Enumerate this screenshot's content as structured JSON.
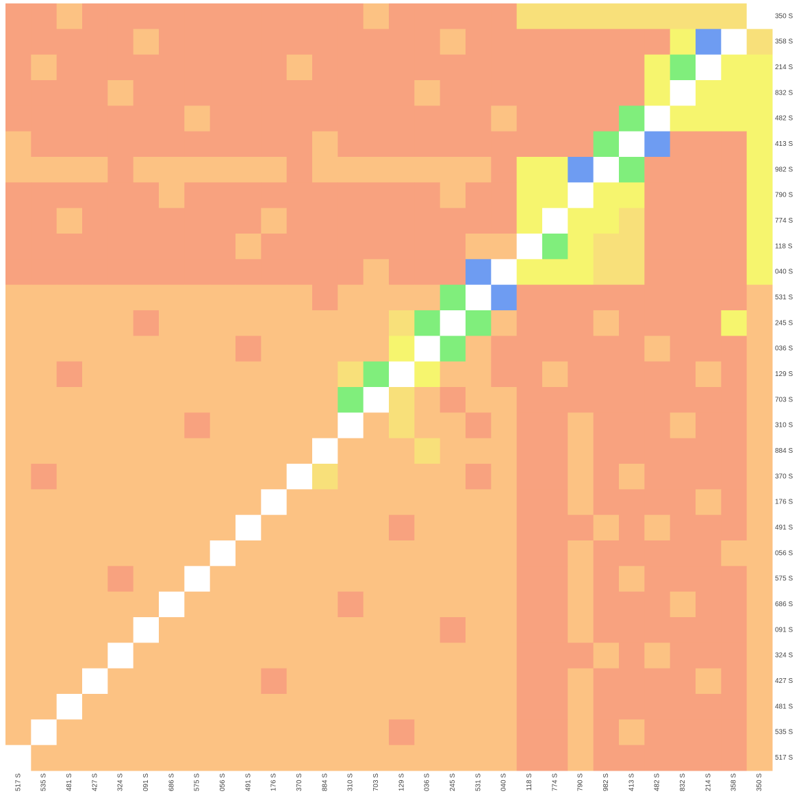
{
  "chart_data": {
    "type": "heatmap",
    "categories": [
      "517 S",
      "535 S",
      "481 S",
      "427 S",
      "324 S",
      "091 S",
      "686 S",
      "575 S",
      "056 S",
      "491 S",
      "176 S",
      "370 S",
      "884 S",
      "310 S",
      "703 S",
      "129 S",
      "036 S",
      "245 S",
      "531 S",
      "040 S",
      "118 S",
      "774 S",
      "790 S",
      "982 S",
      "413 S",
      "482 S",
      "832 S",
      "214 S",
      "358 S",
      "350 S"
    ],
    "colorscale": [
      [
        0.2,
        "#f8a27f"
      ],
      [
        0.3,
        "#fcc283"
      ],
      [
        0.4,
        "#f8e07a"
      ],
      [
        0.5,
        "#f6f56e"
      ],
      [
        0.7,
        "#80ee7c"
      ],
      [
        0.85,
        "#6e9cf2"
      ],
      [
        1,
        "#ffffff"
      ]
    ],
    "z": [
      [
        0.2,
        0.2,
        0.3,
        0.2,
        0.2,
        0.2,
        0.2,
        0.2,
        0.2,
        0.2,
        0.2,
        0.2,
        0.2,
        0.2,
        0.3,
        0.2,
        0.2,
        0.2,
        0.2,
        0.2,
        0.4,
        0.4,
        0.4,
        0.4,
        0.4,
        0.4,
        0.4,
        0.4,
        0.4,
        1
      ],
      [
        0.2,
        0.2,
        0.2,
        0.2,
        0.2,
        0.3,
        0.2,
        0.2,
        0.2,
        0.2,
        0.2,
        0.2,
        0.2,
        0.2,
        0.2,
        0.2,
        0.2,
        0.3,
        0.2,
        0.2,
        0.2,
        0.2,
        0.2,
        0.2,
        0.2,
        0.2,
        0.5,
        0.85,
        1,
        0.4
      ],
      [
        0.2,
        0.3,
        0.2,
        0.2,
        0.2,
        0.2,
        0.2,
        0.2,
        0.2,
        0.2,
        0.2,
        0.3,
        0.2,
        0.2,
        0.2,
        0.2,
        0.2,
        0.2,
        0.2,
        0.2,
        0.2,
        0.2,
        0.2,
        0.2,
        0.2,
        0.5,
        0.7,
        1,
        0.5,
        0.5
      ],
      [
        0.2,
        0.2,
        0.2,
        0.2,
        0.3,
        0.2,
        0.2,
        0.2,
        0.2,
        0.2,
        0.2,
        0.2,
        0.2,
        0.2,
        0.2,
        0.2,
        0.3,
        0.2,
        0.2,
        0.2,
        0.2,
        0.2,
        0.2,
        0.2,
        0.2,
        0.5,
        1,
        0.5,
        0.5,
        0.5
      ],
      [
        0.2,
        0.2,
        0.2,
        0.2,
        0.2,
        0.2,
        0.2,
        0.3,
        0.2,
        0.2,
        0.2,
        0.2,
        0.2,
        0.2,
        0.2,
        0.2,
        0.2,
        0.2,
        0.2,
        0.3,
        0.2,
        0.2,
        0.2,
        0.2,
        0.7,
        1,
        0.5,
        0.5,
        0.5,
        0.5
      ],
      [
        0.3,
        0.2,
        0.2,
        0.2,
        0.2,
        0.2,
        0.2,
        0.2,
        0.2,
        0.2,
        0.2,
        0.2,
        0.3,
        0.2,
        0.2,
        0.2,
        0.2,
        0.2,
        0.2,
        0.2,
        0.2,
        0.2,
        0.2,
        0.7,
        1,
        0.85,
        0.2,
        0.2,
        0.2,
        0.5
      ],
      [
        0.3,
        0.3,
        0.3,
        0.3,
        0.2,
        0.3,
        0.3,
        0.3,
        0.3,
        0.3,
        0.3,
        0.2,
        0.3,
        0.3,
        0.3,
        0.3,
        0.3,
        0.3,
        0.3,
        0.2,
        0.5,
        0.5,
        0.85,
        1,
        0.7,
        0.2,
        0.2,
        0.2,
        0.2,
        0.5
      ],
      [
        0.2,
        0.2,
        0.2,
        0.2,
        0.2,
        0.2,
        0.3,
        0.2,
        0.2,
        0.2,
        0.2,
        0.2,
        0.2,
        0.2,
        0.2,
        0.2,
        0.2,
        0.3,
        0.2,
        0.2,
        0.5,
        0.5,
        1,
        0.5,
        0.5,
        0.2,
        0.2,
        0.2,
        0.2,
        0.5
      ],
      [
        0.2,
        0.2,
        0.3,
        0.2,
        0.2,
        0.2,
        0.2,
        0.2,
        0.2,
        0.2,
        0.3,
        0.2,
        0.2,
        0.2,
        0.2,
        0.2,
        0.2,
        0.2,
        0.2,
        0.2,
        0.5,
        1,
        0.5,
        0.5,
        0.4,
        0.2,
        0.2,
        0.2,
        0.2,
        0.5
      ],
      [
        0.2,
        0.2,
        0.2,
        0.2,
        0.2,
        0.2,
        0.2,
        0.2,
        0.2,
        0.3,
        0.2,
        0.2,
        0.2,
        0.2,
        0.2,
        0.2,
        0.2,
        0.2,
        0.3,
        0.3,
        1,
        0.7,
        0.5,
        0.4,
        0.4,
        0.2,
        0.2,
        0.2,
        0.2,
        0.5
      ],
      [
        0.2,
        0.2,
        0.2,
        0.2,
        0.2,
        0.2,
        0.2,
        0.2,
        0.2,
        0.2,
        0.2,
        0.2,
        0.2,
        0.2,
        0.3,
        0.2,
        0.2,
        0.2,
        0.85,
        1,
        0.5,
        0.5,
        0.5,
        0.4,
        0.4,
        0.2,
        0.2,
        0.2,
        0.2,
        0.5
      ],
      [
        0.3,
        0.3,
        0.3,
        0.3,
        0.3,
        0.3,
        0.3,
        0.3,
        0.3,
        0.3,
        0.3,
        0.3,
        0.2,
        0.3,
        0.3,
        0.3,
        0.3,
        0.7,
        1,
        0.85,
        0.2,
        0.2,
        0.2,
        0.2,
        0.2,
        0.2,
        0.2,
        0.2,
        0.2,
        0.3
      ],
      [
        0.3,
        0.3,
        0.3,
        0.3,
        0.3,
        0.2,
        0.3,
        0.3,
        0.3,
        0.3,
        0.3,
        0.3,
        0.3,
        0.3,
        0.3,
        0.4,
        0.7,
        1,
        0.7,
        0.3,
        0.2,
        0.2,
        0.2,
        0.3,
        0.2,
        0.2,
        0.2,
        0.2,
        0.5,
        0.3
      ],
      [
        0.3,
        0.3,
        0.3,
        0.3,
        0.3,
        0.3,
        0.3,
        0.3,
        0.3,
        0.2,
        0.3,
        0.3,
        0.3,
        0.3,
        0.3,
        0.5,
        1,
        0.7,
        0.3,
        0.2,
        0.2,
        0.2,
        0.2,
        0.2,
        0.2,
        0.3,
        0.2,
        0.2,
        0.2,
        0.3
      ],
      [
        0.3,
        0.3,
        0.2,
        0.3,
        0.3,
        0.3,
        0.3,
        0.3,
        0.3,
        0.3,
        0.3,
        0.3,
        0.3,
        0.4,
        0.7,
        1,
        0.5,
        0.3,
        0.3,
        0.2,
        0.2,
        0.3,
        0.2,
        0.2,
        0.2,
        0.2,
        0.2,
        0.3,
        0.2,
        0.3
      ],
      [
        0.3,
        0.3,
        0.3,
        0.3,
        0.3,
        0.3,
        0.3,
        0.3,
        0.3,
        0.3,
        0.3,
        0.3,
        0.3,
        0.7,
        1,
        0.4,
        0.3,
        0.2,
        0.3,
        0.3,
        0.2,
        0.2,
        0.2,
        0.2,
        0.2,
        0.2,
        0.2,
        0.2,
        0.2,
        0.3
      ],
      [
        0.3,
        0.3,
        0.3,
        0.3,
        0.3,
        0.3,
        0.3,
        0.2,
        0.3,
        0.3,
        0.3,
        0.3,
        0.3,
        1,
        0.3,
        0.4,
        0.3,
        0.3,
        0.2,
        0.3,
        0.2,
        0.2,
        0.3,
        0.2,
        0.2,
        0.2,
        0.3,
        0.2,
        0.2,
        0.3
      ],
      [
        0.3,
        0.3,
        0.3,
        0.3,
        0.3,
        0.3,
        0.3,
        0.3,
        0.3,
        0.3,
        0.3,
        0.3,
        1,
        0.3,
        0.3,
        0.3,
        0.4,
        0.3,
        0.3,
        0.3,
        0.2,
        0.2,
        0.3,
        0.2,
        0.2,
        0.2,
        0.2,
        0.2,
        0.2,
        0.3
      ],
      [
        0.3,
        0.2,
        0.3,
        0.3,
        0.3,
        0.3,
        0.3,
        0.3,
        0.3,
        0.3,
        0.3,
        1,
        0.4,
        0.3,
        0.3,
        0.3,
        0.3,
        0.3,
        0.2,
        0.3,
        0.2,
        0.2,
        0.3,
        0.2,
        0.3,
        0.2,
        0.2,
        0.2,
        0.2,
        0.3
      ],
      [
        0.3,
        0.3,
        0.3,
        0.3,
        0.3,
        0.3,
        0.3,
        0.3,
        0.3,
        0.3,
        1,
        0.3,
        0.3,
        0.3,
        0.3,
        0.3,
        0.3,
        0.3,
        0.3,
        0.3,
        0.2,
        0.2,
        0.3,
        0.2,
        0.2,
        0.2,
        0.2,
        0.3,
        0.2,
        0.3
      ],
      [
        0.3,
        0.3,
        0.3,
        0.3,
        0.3,
        0.3,
        0.3,
        0.3,
        0.3,
        1,
        0.3,
        0.3,
        0.3,
        0.3,
        0.3,
        0.2,
        0.3,
        0.3,
        0.3,
        0.3,
        0.2,
        0.2,
        0.2,
        0.3,
        0.2,
        0.3,
        0.2,
        0.2,
        0.2,
        0.3
      ],
      [
        0.3,
        0.3,
        0.3,
        0.3,
        0.3,
        0.3,
        0.3,
        0.3,
        1,
        0.3,
        0.3,
        0.3,
        0.3,
        0.3,
        0.3,
        0.3,
        0.3,
        0.3,
        0.3,
        0.3,
        0.2,
        0.2,
        0.3,
        0.2,
        0.2,
        0.2,
        0.2,
        0.2,
        0.3,
        0.3
      ],
      [
        0.3,
        0.3,
        0.3,
        0.3,
        0.2,
        0.3,
        0.3,
        1,
        0.3,
        0.3,
        0.3,
        0.3,
        0.3,
        0.3,
        0.3,
        0.3,
        0.3,
        0.3,
        0.3,
        0.3,
        0.2,
        0.2,
        0.3,
        0.2,
        0.3,
        0.2,
        0.2,
        0.2,
        0.2,
        0.3
      ],
      [
        0.3,
        0.3,
        0.3,
        0.3,
        0.3,
        0.3,
        1,
        0.3,
        0.3,
        0.3,
        0.3,
        0.3,
        0.3,
        0.2,
        0.3,
        0.3,
        0.3,
        0.3,
        0.3,
        0.3,
        0.2,
        0.2,
        0.3,
        0.2,
        0.2,
        0.2,
        0.3,
        0.2,
        0.2,
        0.3
      ],
      [
        0.3,
        0.3,
        0.3,
        0.3,
        0.3,
        1,
        0.3,
        0.3,
        0.3,
        0.3,
        0.3,
        0.3,
        0.3,
        0.3,
        0.3,
        0.3,
        0.3,
        0.2,
        0.3,
        0.3,
        0.2,
        0.2,
        0.3,
        0.2,
        0.2,
        0.2,
        0.2,
        0.2,
        0.2,
        0.3
      ],
      [
        0.3,
        0.3,
        0.3,
        0.3,
        1,
        0.3,
        0.3,
        0.3,
        0.3,
        0.3,
        0.3,
        0.3,
        0.3,
        0.3,
        0.3,
        0.3,
        0.3,
        0.3,
        0.3,
        0.3,
        0.2,
        0.2,
        0.2,
        0.3,
        0.2,
        0.3,
        0.2,
        0.2,
        0.2,
        0.3
      ],
      [
        0.3,
        0.3,
        0.3,
        1,
        0.3,
        0.3,
        0.3,
        0.3,
        0.3,
        0.3,
        0.2,
        0.3,
        0.3,
        0.3,
        0.3,
        0.3,
        0.3,
        0.3,
        0.3,
        0.3,
        0.2,
        0.2,
        0.3,
        0.2,
        0.2,
        0.2,
        0.2,
        0.3,
        0.2,
        0.3
      ],
      [
        0.3,
        0.3,
        1,
        0.3,
        0.3,
        0.3,
        0.3,
        0.3,
        0.3,
        0.3,
        0.3,
        0.3,
        0.3,
        0.3,
        0.3,
        0.3,
        0.3,
        0.3,
        0.3,
        0.3,
        0.2,
        0.2,
        0.3,
        0.2,
        0.2,
        0.2,
        0.2,
        0.2,
        0.2,
        0.3
      ],
      [
        0.3,
        1,
        0.3,
        0.3,
        0.3,
        0.3,
        0.3,
        0.3,
        0.3,
        0.3,
        0.3,
        0.3,
        0.3,
        0.3,
        0.3,
        0.2,
        0.3,
        0.3,
        0.3,
        0.3,
        0.2,
        0.2,
        0.3,
        0.2,
        0.3,
        0.2,
        0.2,
        0.2,
        0.2,
        0.3
      ],
      [
        1,
        0.3,
        0.3,
        0.3,
        0.3,
        0.3,
        0.3,
        0.3,
        0.3,
        0.3,
        0.3,
        0.3,
        0.3,
        0.3,
        0.3,
        0.3,
        0.3,
        0.3,
        0.3,
        0.3,
        0.2,
        0.2,
        0.3,
        0.2,
        0.2,
        0.2,
        0.2,
        0.2,
        0.2,
        0.3
      ]
    ]
  }
}
